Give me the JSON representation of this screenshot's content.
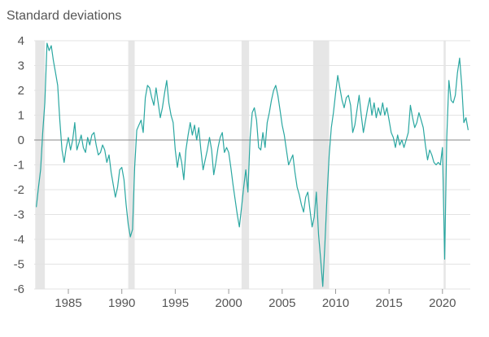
{
  "chart_data": {
    "type": "line",
    "title": "",
    "ylabel": "Standard deviations",
    "xlabel": "",
    "xlim": [
      1981.8,
      2022.6
    ],
    "ylim": [
      -6,
      4
    ],
    "yticks": [
      4,
      3,
      2,
      1,
      0,
      -1,
      -2,
      -3,
      -4,
      -5,
      -6
    ],
    "xticks": [
      1985,
      1990,
      1995,
      2000,
      2005,
      2010,
      2015,
      2020
    ],
    "grid": "horizontal",
    "zero_line": true,
    "legend": "none",
    "recession_shading": [
      [
        1981.9,
        1982.8
      ],
      [
        1990.6,
        1991.2
      ],
      [
        2001.2,
        2001.9
      ],
      [
        2007.9,
        2009.4
      ],
      [
        2020.1,
        2020.3
      ]
    ],
    "series": [
      {
        "color": "#2aa7a1",
        "points": [
          [
            1982.0,
            -2.7
          ],
          [
            1982.2,
            -1.9
          ],
          [
            1982.4,
            -1.2
          ],
          [
            1982.6,
            0.3
          ],
          [
            1982.8,
            1.5
          ],
          [
            1983.0,
            3.9
          ],
          [
            1983.2,
            3.6
          ],
          [
            1983.4,
            3.8
          ],
          [
            1983.6,
            3.2
          ],
          [
            1983.8,
            2.7
          ],
          [
            1984.0,
            2.2
          ],
          [
            1984.2,
            0.8
          ],
          [
            1984.4,
            -0.4
          ],
          [
            1984.6,
            -0.9
          ],
          [
            1984.8,
            -0.3
          ],
          [
            1985.0,
            0.1
          ],
          [
            1985.2,
            -0.4
          ],
          [
            1985.4,
            0.0
          ],
          [
            1985.6,
            0.7
          ],
          [
            1985.8,
            -0.4
          ],
          [
            1986.0,
            -0.1
          ],
          [
            1986.2,
            0.2
          ],
          [
            1986.4,
            -0.3
          ],
          [
            1986.6,
            -0.5
          ],
          [
            1986.8,
            0.1
          ],
          [
            1987.0,
            -0.2
          ],
          [
            1987.2,
            0.2
          ],
          [
            1987.4,
            0.3
          ],
          [
            1987.6,
            -0.2
          ],
          [
            1987.8,
            -0.6
          ],
          [
            1988.0,
            -0.5
          ],
          [
            1988.2,
            -0.2
          ],
          [
            1988.4,
            -0.4
          ],
          [
            1988.6,
            -0.9
          ],
          [
            1988.8,
            -0.6
          ],
          [
            1989.0,
            -1.3
          ],
          [
            1989.2,
            -1.8
          ],
          [
            1989.4,
            -2.3
          ],
          [
            1989.6,
            -1.9
          ],
          [
            1989.8,
            -1.2
          ],
          [
            1990.0,
            -1.1
          ],
          [
            1990.2,
            -1.6
          ],
          [
            1990.4,
            -2.6
          ],
          [
            1990.6,
            -3.4
          ],
          [
            1990.8,
            -3.9
          ],
          [
            1991.0,
            -3.6
          ],
          [
            1991.2,
            -1.1
          ],
          [
            1991.4,
            0.4
          ],
          [
            1991.6,
            0.6
          ],
          [
            1991.8,
            0.8
          ],
          [
            1992.0,
            0.3
          ],
          [
            1992.2,
            1.7
          ],
          [
            1992.4,
            2.2
          ],
          [
            1992.6,
            2.1
          ],
          [
            1992.8,
            1.7
          ],
          [
            1993.0,
            1.4
          ],
          [
            1993.2,
            2.1
          ],
          [
            1993.4,
            1.5
          ],
          [
            1993.6,
            0.9
          ],
          [
            1993.8,
            1.3
          ],
          [
            1994.0,
            1.9
          ],
          [
            1994.2,
            2.4
          ],
          [
            1994.4,
            1.5
          ],
          [
            1994.6,
            1.0
          ],
          [
            1994.8,
            0.7
          ],
          [
            1995.0,
            -0.4
          ],
          [
            1995.2,
            -1.1
          ],
          [
            1995.4,
            -0.5
          ],
          [
            1995.6,
            -0.9
          ],
          [
            1995.8,
            -1.6
          ],
          [
            1996.0,
            -0.4
          ],
          [
            1996.2,
            0.2
          ],
          [
            1996.4,
            0.7
          ],
          [
            1996.6,
            0.2
          ],
          [
            1996.8,
            0.6
          ],
          [
            1997.0,
            0.0
          ],
          [
            1997.2,
            0.5
          ],
          [
            1997.4,
            -0.4
          ],
          [
            1997.6,
            -1.2
          ],
          [
            1997.8,
            -0.8
          ],
          [
            1998.0,
            -0.4
          ],
          [
            1998.2,
            0.1
          ],
          [
            1998.4,
            -0.4
          ],
          [
            1998.6,
            -1.4
          ],
          [
            1998.8,
            -0.9
          ],
          [
            1999.0,
            -0.3
          ],
          [
            1999.2,
            0.1
          ],
          [
            1999.4,
            0.3
          ],
          [
            1999.6,
            -0.5
          ],
          [
            1999.8,
            -0.3
          ],
          [
            2000.0,
            -0.5
          ],
          [
            2000.2,
            -1.1
          ],
          [
            2000.4,
            -1.8
          ],
          [
            2000.6,
            -2.4
          ],
          [
            2000.8,
            -3.0
          ],
          [
            2001.0,
            -3.5
          ],
          [
            2001.2,
            -2.7
          ],
          [
            2001.4,
            -1.9
          ],
          [
            2001.6,
            -1.2
          ],
          [
            2001.8,
            -2.1
          ],
          [
            2002.0,
            0.1
          ],
          [
            2002.2,
            1.1
          ],
          [
            2002.4,
            1.3
          ],
          [
            2002.6,
            0.8
          ],
          [
            2002.8,
            -0.3
          ],
          [
            2003.0,
            -0.4
          ],
          [
            2003.2,
            0.3
          ],
          [
            2003.4,
            -0.3
          ],
          [
            2003.6,
            0.7
          ],
          [
            2003.8,
            1.1
          ],
          [
            2004.0,
            1.6
          ],
          [
            2004.2,
            2.0
          ],
          [
            2004.4,
            2.2
          ],
          [
            2004.6,
            1.8
          ],
          [
            2004.8,
            1.2
          ],
          [
            2005.0,
            0.6
          ],
          [
            2005.2,
            0.2
          ],
          [
            2005.4,
            -0.4
          ],
          [
            2005.6,
            -1.0
          ],
          [
            2005.8,
            -0.8
          ],
          [
            2006.0,
            -0.6
          ],
          [
            2006.2,
            -1.3
          ],
          [
            2006.4,
            -1.9
          ],
          [
            2006.6,
            -2.2
          ],
          [
            2006.8,
            -2.6
          ],
          [
            2007.0,
            -2.9
          ],
          [
            2007.2,
            -2.3
          ],
          [
            2007.4,
            -2.1
          ],
          [
            2007.6,
            -2.8
          ],
          [
            2007.8,
            -3.5
          ],
          [
            2008.0,
            -3.1
          ],
          [
            2008.2,
            -2.1
          ],
          [
            2008.4,
            -3.8
          ],
          [
            2008.6,
            -4.8
          ],
          [
            2008.8,
            -5.9
          ],
          [
            2009.0,
            -4.2
          ],
          [
            2009.2,
            -2.2
          ],
          [
            2009.4,
            -0.6
          ],
          [
            2009.6,
            0.5
          ],
          [
            2009.8,
            1.1
          ],
          [
            2010.0,
            1.9
          ],
          [
            2010.2,
            2.6
          ],
          [
            2010.4,
            2.1
          ],
          [
            2010.6,
            1.6
          ],
          [
            2010.8,
            1.3
          ],
          [
            2011.0,
            1.7
          ],
          [
            2011.2,
            1.8
          ],
          [
            2011.4,
            1.4
          ],
          [
            2011.6,
            0.3
          ],
          [
            2011.8,
            0.6
          ],
          [
            2012.0,
            1.2
          ],
          [
            2012.2,
            1.8
          ],
          [
            2012.4,
            1.0
          ],
          [
            2012.6,
            0.3
          ],
          [
            2012.8,
            0.8
          ],
          [
            2013.0,
            1.3
          ],
          [
            2013.2,
            1.7
          ],
          [
            2013.4,
            1.0
          ],
          [
            2013.6,
            1.5
          ],
          [
            2013.8,
            0.9
          ],
          [
            2014.0,
            1.3
          ],
          [
            2014.2,
            1.0
          ],
          [
            2014.4,
            1.5
          ],
          [
            2014.6,
            1.0
          ],
          [
            2014.8,
            1.3
          ],
          [
            2015.0,
            0.8
          ],
          [
            2015.2,
            0.3
          ],
          [
            2015.4,
            0.1
          ],
          [
            2015.6,
            -0.3
          ],
          [
            2015.8,
            0.2
          ],
          [
            2016.0,
            -0.2
          ],
          [
            2016.2,
            0.0
          ],
          [
            2016.4,
            -0.3
          ],
          [
            2016.6,
            0.0
          ],
          [
            2016.8,
            0.3
          ],
          [
            2017.0,
            1.4
          ],
          [
            2017.2,
            0.9
          ],
          [
            2017.4,
            0.5
          ],
          [
            2017.6,
            0.7
          ],
          [
            2017.8,
            1.1
          ],
          [
            2018.0,
            0.8
          ],
          [
            2018.2,
            0.5
          ],
          [
            2018.4,
            -0.2
          ],
          [
            2018.6,
            -0.8
          ],
          [
            2018.8,
            -0.4
          ],
          [
            2019.0,
            -0.6
          ],
          [
            2019.2,
            -0.9
          ],
          [
            2019.4,
            -1.0
          ],
          [
            2019.6,
            -0.9
          ],
          [
            2019.8,
            -1.0
          ],
          [
            2020.0,
            -0.3
          ],
          [
            2020.2,
            -4.8
          ],
          [
            2020.4,
            0.1
          ],
          [
            2020.6,
            2.4
          ],
          [
            2020.8,
            1.6
          ],
          [
            2021.0,
            1.5
          ],
          [
            2021.2,
            1.8
          ],
          [
            2021.4,
            2.7
          ],
          [
            2021.6,
            3.3
          ],
          [
            2021.8,
            2.2
          ],
          [
            2022.0,
            0.7
          ],
          [
            2022.2,
            0.9
          ],
          [
            2022.4,
            0.4
          ]
        ]
      }
    ]
  },
  "colors": {
    "line": "#2aa7a1",
    "recession": "#e6e6e6",
    "grid": "#e3e3e3",
    "zero_line": "#8a8a8a",
    "text": "#555555"
  }
}
